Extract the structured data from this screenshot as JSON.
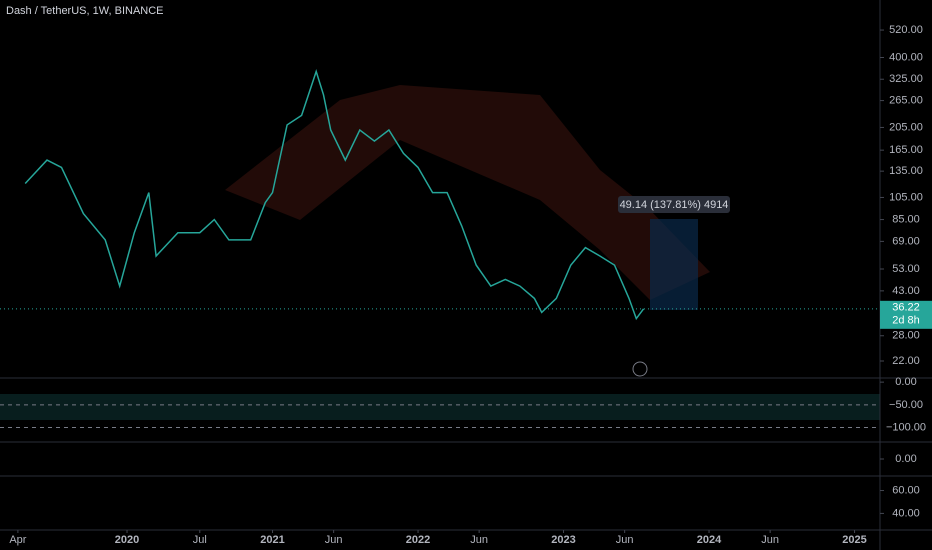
{
  "chart_data": {
    "type": "line",
    "title": "Dash / TetherUS, 1W, BINANCE",
    "log": true,
    "color": "#26a69a",
    "x": [
      2019.3,
      2019.45,
      2019.55,
      2019.7,
      2019.85,
      2019.95,
      2020.05,
      2020.15,
      2020.2,
      2020.35,
      2020.5,
      2020.6,
      2020.7,
      2020.85,
      2020.95,
      2021.0,
      2021.1,
      2021.2,
      2021.3,
      2021.35,
      2021.4,
      2021.5,
      2021.6,
      2021.7,
      2021.8,
      2021.9,
      2022.0,
      2022.1,
      2022.2,
      2022.3,
      2022.4,
      2022.5,
      2022.6,
      2022.7,
      2022.8,
      2022.85,
      2022.95,
      2023.05,
      2023.15,
      2023.25,
      2023.35,
      2023.45,
      2023.5,
      2023.55
    ],
    "values": [
      120,
      150,
      140,
      90,
      70,
      45,
      75,
      110,
      60,
      75,
      75,
      85,
      70,
      70,
      100,
      110,
      210,
      230,
      350,
      280,
      200,
      150,
      200,
      180,
      200,
      160,
      140,
      110,
      110,
      80,
      55,
      45,
      48,
      45,
      40,
      35,
      40,
      55,
      65,
      60,
      55,
      40,
      33,
      36.22
    ],
    "xlim": [
      2019.127,
      2025.175
    ],
    "ylim": [
      18.7,
      693
    ],
    "xticks": [
      {
        "value": 2019.25,
        "label": "Apr"
      },
      2020,
      {
        "value": 2020.5,
        "label": "Jul"
      },
      2021,
      {
        "value": 2021.42,
        "label": "Jun"
      },
      2022,
      {
        "value": 2022.42,
        "label": "Jun"
      },
      2023,
      {
        "value": 2023.42,
        "label": "Jun"
      },
      2024,
      {
        "value": 2024.42,
        "label": "Jun"
      },
      2025
    ],
    "yticks": [
      {
        "value": 520,
        "label": "520.00"
      },
      {
        "value": 400,
        "label": "400.00"
      },
      {
        "value": 325,
        "label": "325.00"
      },
      {
        "value": 265,
        "label": "265.00"
      },
      {
        "value": 205,
        "label": "205.00"
      },
      {
        "value": 165,
        "label": "165.00"
      },
      {
        "value": 135,
        "label": "135.00"
      },
      {
        "value": 105,
        "label": "105.00"
      },
      {
        "value": 85,
        "label": "85.00"
      },
      {
        "value": 69,
        "label": "69.00"
      },
      {
        "value": 53,
        "label": "53.00"
      },
      {
        "value": 43,
        "label": "43.00"
      },
      {
        "value": 28,
        "label": "28.00"
      },
      {
        "value": 22,
        "label": "22.00"
      }
    ],
    "last_price": 36.22,
    "countdown": "2d 8h",
    "measure": "49.14 (137.81%) 4914"
  },
  "indicator": {
    "ylim": [
      -131.8,
      9.1
    ],
    "yticks": [
      {
        "value": 0,
        "label": "0.00"
      },
      {
        "value": -50,
        "label": "−50.00"
      },
      {
        "value": -100,
        "label": "−100.00"
      }
    ]
  },
  "pane2": {
    "ylim": [
      -1,
      1
    ],
    "yticks": [
      {
        "value": 0,
        "label": "0.00"
      }
    ]
  },
  "pane3": {
    "ylim": [
      25.5,
      72.7
    ],
    "yticks": [
      {
        "value": 60,
        "label": "60.00"
      },
      {
        "value": 40,
        "label": "40.00"
      }
    ]
  }
}
